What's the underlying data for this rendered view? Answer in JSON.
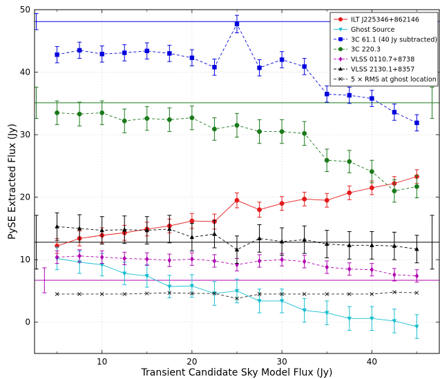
{
  "chart_data": {
    "type": "scatter",
    "xlabel": "Transient Candidate Sky Model Flux (Jy)",
    "ylabel": "PySE Extracted Flux (Jy)",
    "xlim": [
      2.5,
      47.5
    ],
    "ylim": [
      -5,
      50
    ],
    "xticks": [
      10,
      20,
      30,
      40
    ],
    "yticks": [
      0,
      10,
      20,
      30,
      40,
      50
    ],
    "grid": true,
    "legend_position": "top-right",
    "x": [
      5,
      7.5,
      10,
      12.5,
      15,
      17.5,
      20,
      22.5,
      25,
      27.5,
      30,
      32.5,
      35,
      37.5,
      40,
      42.5,
      45
    ],
    "series": [
      {
        "name": "ILT J225346+862146",
        "color": "#e31a1c",
        "marker": "circle",
        "dashed": false,
        "values": [
          12.2,
          13.4,
          13.9,
          14.3,
          14.9,
          15.4,
          16.2,
          16.1,
          19.5,
          18.0,
          19.0,
          19.7,
          19.5,
          20.7,
          21.5,
          22.2,
          23.3
        ],
        "errors": [
          1.2,
          1.2,
          1.2,
          1.2,
          1.1,
          1.1,
          1.2,
          1.2,
          1.2,
          1.2,
          1.1,
          1.1,
          1.1,
          1.1,
          1.1,
          1.1,
          1.1
        ]
      },
      {
        "name": "Ghost Source",
        "color": "#17becf",
        "marker": "triangle-down",
        "dashed": false,
        "values": [
          10.2,
          9.6,
          9.2,
          7.8,
          7.4,
          5.7,
          5.8,
          4.6,
          5.0,
          3.4,
          3.4,
          1.9,
          1.5,
          0.6,
          0.6,
          0.2,
          -0.7
        ],
        "errors": [
          1.8,
          1.8,
          1.8,
          1.8,
          1.8,
          1.8,
          1.8,
          1.9,
          1.9,
          1.9,
          1.9,
          1.9,
          1.9,
          1.9,
          1.9,
          1.9,
          1.9
        ]
      },
      {
        "name": "3C 61.1 (40 Jy subtracted)",
        "color": "#0000dd",
        "marker": "square",
        "dashed": true,
        "values": [
          42.8,
          43.5,
          42.9,
          43.1,
          43.4,
          43.0,
          42.3,
          40.8,
          47.7,
          40.7,
          42.0,
          40.9,
          36.5,
          36.3,
          35.8,
          33.6,
          31.9
        ],
        "errors": [
          1.3,
          1.3,
          1.3,
          1.3,
          1.3,
          1.3,
          1.3,
          1.3,
          1.4,
          1.3,
          1.3,
          1.3,
          1.3,
          1.3,
          1.3,
          1.3,
          1.3
        ]
      },
      {
        "name": "3C 220.3",
        "color": "#1a7a1a",
        "marker": "circle",
        "dashed": true,
        "values": [
          33.5,
          33.3,
          33.5,
          32.2,
          32.6,
          32.4,
          32.7,
          30.9,
          31.5,
          30.5,
          30.5,
          30.2,
          25.9,
          25.7,
          24.1,
          21.0,
          21.7
        ],
        "errors": [
          1.9,
          1.9,
          1.9,
          1.9,
          1.9,
          1.9,
          1.9,
          1.8,
          1.9,
          1.9,
          1.9,
          1.9,
          1.8,
          1.8,
          1.8,
          1.8,
          1.8
        ]
      },
      {
        "name": "VLSS 0110.7+8738",
        "color": "#b000b0",
        "marker": "diamond",
        "dashed": true,
        "values": [
          10.4,
          10.6,
          10.4,
          10.2,
          10.1,
          9.9,
          10.1,
          9.8,
          9.2,
          9.8,
          10.0,
          9.7,
          8.8,
          8.5,
          8.4,
          7.6,
          7.4
        ],
        "errors": [
          1.0,
          1.0,
          1.0,
          1.0,
          1.0,
          1.0,
          1.0,
          1.0,
          1.0,
          1.0,
          1.0,
          1.0,
          1.0,
          1.0,
          1.0,
          1.0,
          1.0
        ]
      },
      {
        "name": "VLSS 2130.1+8357",
        "color": "#000000",
        "marker": "triangle-up",
        "dashed": true,
        "values": [
          15.3,
          15.0,
          14.7,
          14.8,
          14.7,
          14.9,
          13.6,
          14.1,
          11.6,
          13.4,
          12.9,
          13.2,
          12.5,
          12.3,
          12.3,
          12.2,
          11.7
        ],
        "errors": [
          2.2,
          2.2,
          2.2,
          2.2,
          2.2,
          2.2,
          2.2,
          2.2,
          2.2,
          2.2,
          2.2,
          2.2,
          2.2,
          2.2,
          2.2,
          2.2,
          2.2
        ]
      },
      {
        "name": "5 × RMS at ghost location",
        "color": "#222222",
        "marker": "x",
        "dashed": true,
        "values": [
          4.5,
          4.5,
          4.5,
          4.5,
          4.6,
          4.7,
          4.6,
          4.6,
          3.8,
          4.5,
          4.5,
          4.5,
          4.5,
          4.5,
          4.5,
          4.8,
          4.7
        ],
        "errors": null
      }
    ],
    "reference_lines": [
      {
        "y": 48.1,
        "color": "#0000dd",
        "error": 1.3,
        "error_x": 2.7
      },
      {
        "y": 35.1,
        "color": "#1a7a1a",
        "error": 2.5,
        "error_x": 2.7
      },
      {
        "y": 12.8,
        "color": "#000000",
        "error": 4.3,
        "error_x": 2.7
      },
      {
        "y": 6.7,
        "color": "#b000b0",
        "error": 2.0,
        "error_x": 3.6
      }
    ],
    "reference_errorbars_right": [
      {
        "y": 35.1,
        "color": "#1a7a1a",
        "error": 2.5,
        "x": 46.7
      },
      {
        "y": 12.8,
        "color": "#000000",
        "error": 4.3,
        "x": 46.7
      }
    ]
  }
}
